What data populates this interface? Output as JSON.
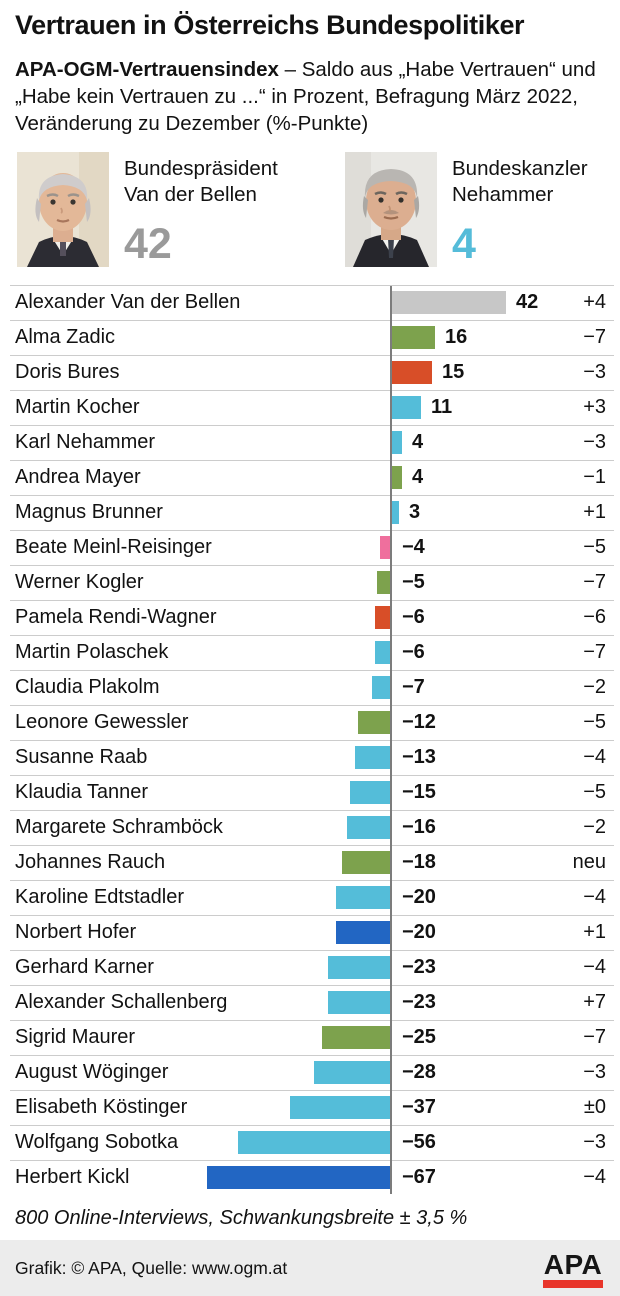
{
  "title": "Vertrauen in Österreichs Bundespolitiker",
  "subtitle_bold": "APA-OGM-Vertrauensindex",
  "subtitle_rest": " – Saldo aus „Habe Vertrauen“ und „Habe kein Vertrauen zu ...“ in Prozent, Befragung März 2022, Veränderung zu Dezember (%-Punkte)",
  "header": {
    "left": {
      "role": "Bundespräsident",
      "name": "Van der Bellen",
      "value": "42",
      "value_color": "#9a9a9a"
    },
    "right": {
      "role": "Bundeskanzler",
      "name": "Nehammer",
      "value": "4",
      "value_color": "#55bcd9"
    }
  },
  "chart_data": {
    "type": "bar",
    "orientation": "horizontal",
    "value_label": "Saldo in Prozent",
    "change_label": "Veränderung zu Dezember (%-Punkte)",
    "xlim": [
      -70,
      45
    ],
    "baseline": 0,
    "rows": [
      {
        "name": "Alexander Van der Bellen",
        "value": 42,
        "change": "+4",
        "color": "#c7c7c7"
      },
      {
        "name": "Alma Zadic",
        "value": 16,
        "change": "−7",
        "color": "#7da24d"
      },
      {
        "name": "Doris Bures",
        "value": 15,
        "change": "−3",
        "color": "#d84e28"
      },
      {
        "name": "Martin Kocher",
        "value": 11,
        "change": "+3",
        "color": "#54bdd9"
      },
      {
        "name": "Karl Nehammer",
        "value": 4,
        "change": "−3",
        "color": "#54bdd9"
      },
      {
        "name": "Andrea Mayer",
        "value": 4,
        "change": "−1",
        "color": "#7da24d"
      },
      {
        "name": "Magnus Brunner",
        "value": 3,
        "change": "+1",
        "color": "#54bdd9"
      },
      {
        "name": "Beate Meinl-Reisinger",
        "value": -4,
        "change": "−5",
        "color": "#ef6f9d"
      },
      {
        "name": "Werner Kogler",
        "value": -5,
        "change": "−7",
        "color": "#7da24d"
      },
      {
        "name": "Pamela Rendi-Wagner",
        "value": -6,
        "change": "−6",
        "color": "#d84e28"
      },
      {
        "name": "Martin Polaschek",
        "value": -6,
        "change": "−7",
        "color": "#54bdd9"
      },
      {
        "name": "Claudia Plakolm",
        "value": -7,
        "change": "−2",
        "color": "#54bdd9"
      },
      {
        "name": "Leonore Gewessler",
        "value": -12,
        "change": "−5",
        "color": "#7da24d"
      },
      {
        "name": "Susanne Raab",
        "value": -13,
        "change": "−4",
        "color": "#54bdd9"
      },
      {
        "name": "Klaudia Tanner",
        "value": -15,
        "change": "−5",
        "color": "#54bdd9"
      },
      {
        "name": "Margarete Schramböck",
        "value": -16,
        "change": "−2",
        "color": "#54bdd9"
      },
      {
        "name": "Johannes Rauch",
        "value": -18,
        "change": "neu",
        "color": "#7da24d"
      },
      {
        "name": "Karoline Edtstadler",
        "value": -20,
        "change": "−4",
        "color": "#54bdd9"
      },
      {
        "name": "Norbert Hofer",
        "value": -20,
        "change": "+1",
        "color": "#2266c3"
      },
      {
        "name": "Gerhard Karner",
        "value": -23,
        "change": "−4",
        "color": "#54bdd9"
      },
      {
        "name": "Alexander Schallenberg",
        "value": -23,
        "change": "+7",
        "color": "#54bdd9"
      },
      {
        "name": "Sigrid Maurer",
        "value": -25,
        "change": "−7",
        "color": "#7da24d"
      },
      {
        "name": "August Wöginger",
        "value": -28,
        "change": "−3",
        "color": "#54bdd9"
      },
      {
        "name": "Elisabeth Köstinger",
        "value": -37,
        "change": "±0",
        "color": "#54bdd9"
      },
      {
        "name": "Wolfgang Sobotka",
        "value": -56,
        "change": "−3",
        "color": "#54bdd9"
      },
      {
        "name": "Herbert Kickl",
        "value": -67,
        "change": "−4",
        "color": "#2266c3"
      }
    ]
  },
  "footnote": "800 Online-Interviews, Schwankungsbreite ± 3,5 %",
  "credit": "Grafik: © APA, Quelle: www.ogm.at",
  "logo_text": "APA",
  "colors": {
    "axis": "#7c7c7c",
    "separator": "#cccccc",
    "credit_strip_bg": "#ececec",
    "logo_red": "#e8352a"
  }
}
